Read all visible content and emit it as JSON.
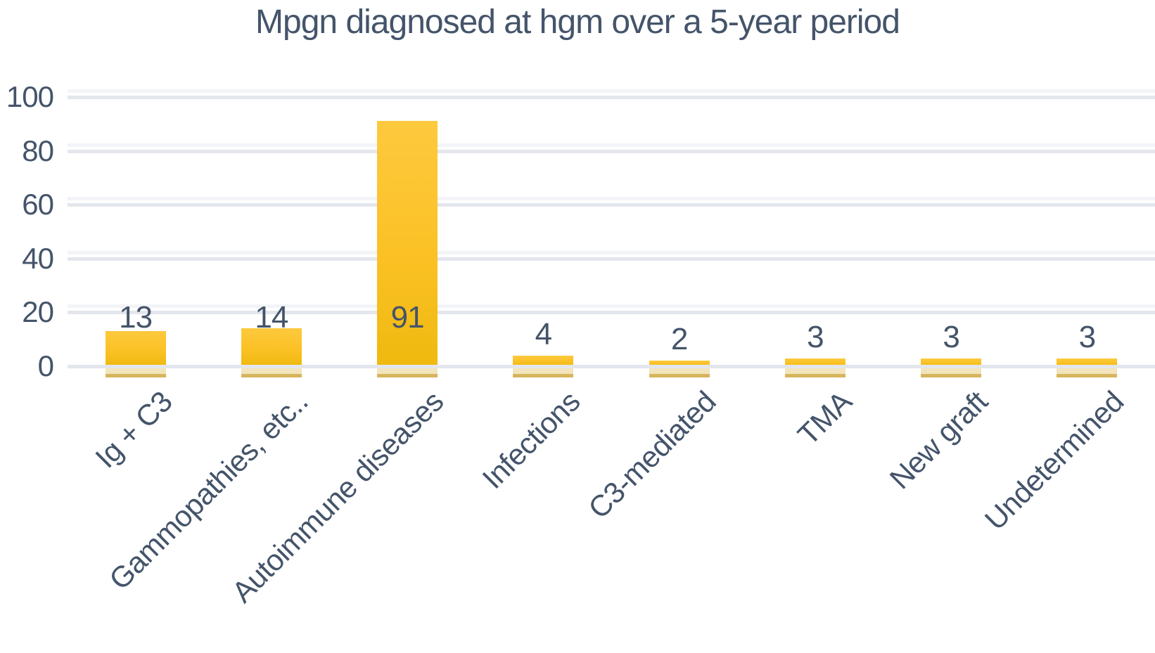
{
  "title": "Mpgn diagnosed at hgm over a 5-year period",
  "colors": {
    "text": "#44546A",
    "gridline": "#E3E7ED",
    "bar_top": "#FDC93E",
    "bar_main": "#FBC125",
    "bar_bottom": "#EFB90F",
    "reflection_band": "#F2E4BC",
    "reflection_line": "#CFA83F",
    "background": "#FFFFFF"
  },
  "chart_data": {
    "type": "bar",
    "title": "Mpgn diagnosed at hgm over a 5-year period",
    "categories": [
      "Ig + C3",
      "Gammopathies, etc..",
      "Autoimmune diseases",
      "Infections",
      "C3-mediated",
      "TMA",
      "New graft",
      "Undetermined"
    ],
    "values": [
      13,
      14,
      91,
      4,
      2,
      3,
      3,
      3
    ],
    "xlabel": "",
    "ylabel": "",
    "ylim": [
      0,
      100
    ],
    "yticks": [
      0,
      20,
      40,
      60,
      80,
      100
    ],
    "grid": "horizontal",
    "legend_position": "none",
    "bar_color": "#FBC125",
    "value_label_color": "#44546A",
    "x_tick_rotation_deg": -45
  }
}
